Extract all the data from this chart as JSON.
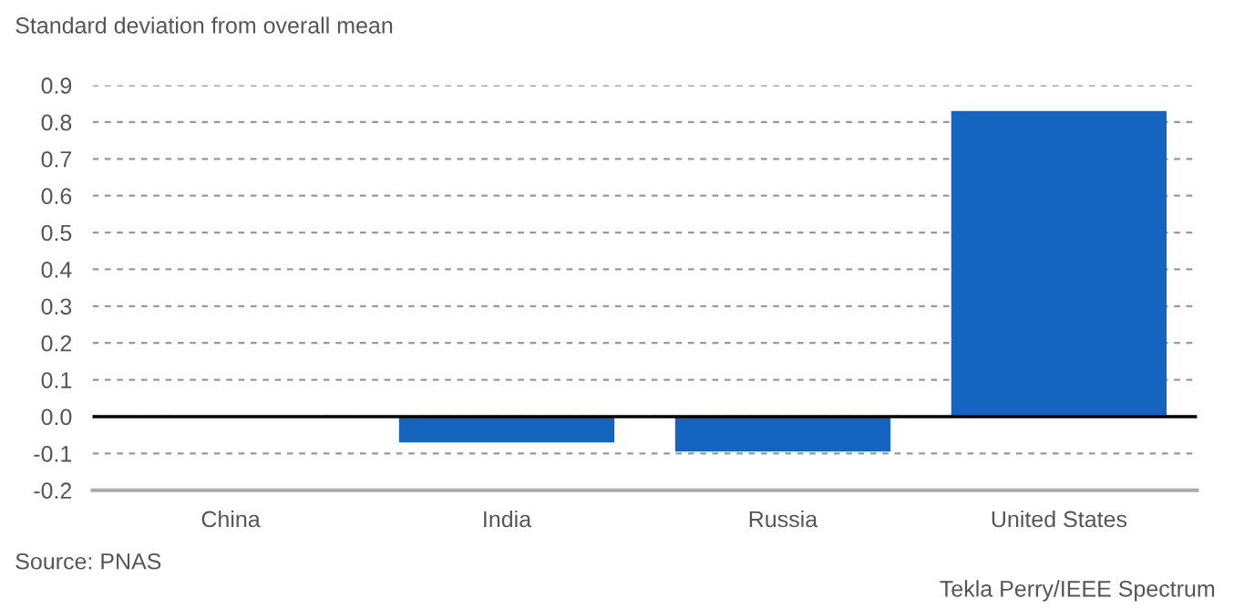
{
  "chart_data": {
    "type": "bar",
    "ylabel": "Standard deviation from overall mean",
    "categories": [
      "China",
      "India",
      "Russia",
      "United States"
    ],
    "values": [
      0.0,
      -0.07,
      -0.095,
      0.83
    ],
    "color": "#1565c0",
    "ylim": [
      -0.2,
      0.9
    ],
    "yticks": [
      {
        "value": -0.2,
        "label": "-0.2"
      },
      {
        "value": -0.1,
        "label": "-0.1"
      },
      {
        "value": 0,
        "label": "0.0"
      },
      0.1,
      0.2,
      0.3,
      0.4,
      0.5,
      0.6,
      0.7,
      0.8,
      0.9
    ],
    "grid": "y",
    "legend": false,
    "ref_lines": [
      {
        "axis": "y",
        "value": 0,
        "color": "#000000"
      }
    ],
    "annotations": [
      "Source: PNAS",
      "Tekla Perry/IEEE Spectrum"
    ]
  }
}
